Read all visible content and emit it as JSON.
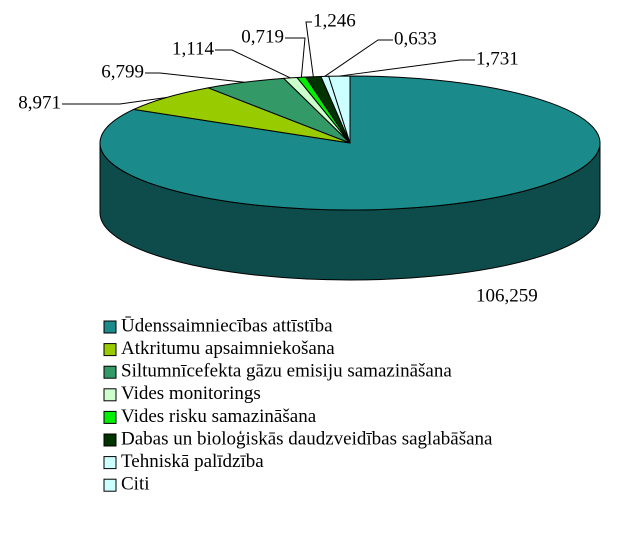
{
  "chart_data": {
    "type": "pie3d",
    "categories": [
      "Ūdenssaimniecības attīstība",
      "Atkritumu apsaimniekošana",
      "Siltumnīcefekta gāzu emisiju samazināšana",
      "Vides monitorings",
      "Vides risku samazināšana",
      "Dabas un bioloģiskās daudzveidības saglabāšana",
      "Tehniskā palīdzība",
      "Citi"
    ],
    "values": [
      106.259,
      8.971,
      6.799,
      1.114,
      0.719,
      1.246,
      0.633,
      1.731
    ],
    "value_labels": [
      "106,259",
      "8,971",
      "6,799",
      "1,114",
      "0,719",
      "1,246",
      "0,633",
      "1,731"
    ],
    "colors": [
      "#1a8a8a",
      "#99cc00",
      "#339966",
      "#ccffcc",
      "#00ee00",
      "#003300",
      "#ccffff",
      "#ccffff"
    ],
    "legend": "bottom"
  }
}
